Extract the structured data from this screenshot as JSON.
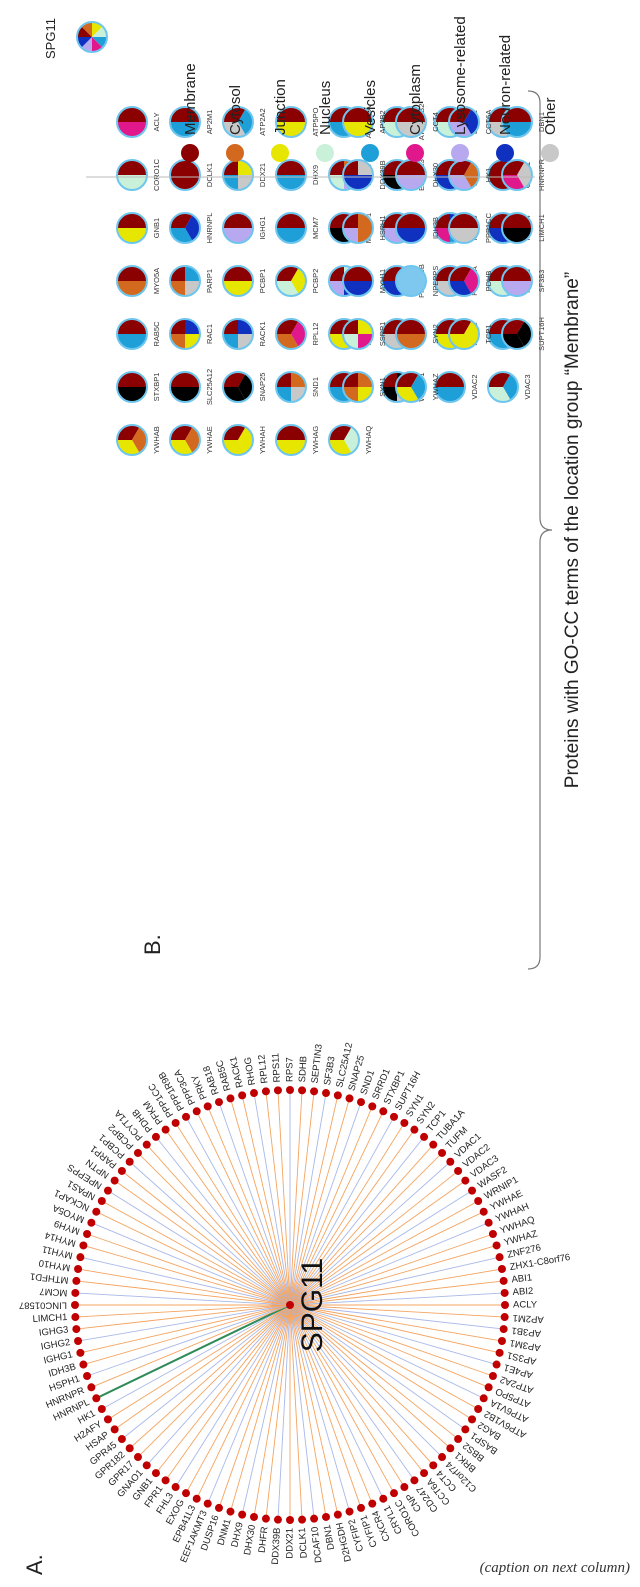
{
  "panels": {
    "a_label": "A.",
    "b_label": "B."
  },
  "network": {
    "center_label": "SPG11",
    "nodes": [
      "LINC01587",
      "MCM7",
      "MTHFD1",
      "MYH10",
      "MYH11",
      "MYH14",
      "MYH9",
      "MYO5A",
      "NCKAP1",
      "NPAS1",
      "NPEPPS",
      "NPTN",
      "PARP1",
      "PCBP1",
      "PCBP2",
      "PCYT1A",
      "PDHB",
      "PFKM",
      "PPP1CC",
      "PPP1R9B",
      "PPP3CA",
      "PRKY",
      "RAB18",
      "RAB5C",
      "RACK1",
      "RHOG",
      "RPL12",
      "RPS11",
      "RPS7",
      "SDHB",
      "SEPTIN3",
      "SF3B3",
      "SLC25A12",
      "SNAP25",
      "SND1",
      "SRRD1",
      "STXBP1",
      "SUPT16H",
      "SYN1",
      "SYN2",
      "TCP1",
      "TUBA1A",
      "TUFM",
      "VDAC1",
      "VDAC2",
      "VDAC3",
      "WASF2",
      "WRNIP1",
      "YWHAE",
      "YWHAH",
      "YWHAQ",
      "YWHAZ",
      "ZNF276",
      "ZHX1-C8orf76",
      "ABI1",
      "ABI2",
      "ACLY",
      "AP2M1",
      "AP3B1",
      "AP3M1",
      "AP3S1",
      "AP4E1",
      "ATP2A2",
      "ATP5PO",
      "ATP6V1A",
      "ATP6V1B2",
      "BAG2",
      "BASP1",
      "BBS2",
      "BRK1",
      "C12orf74",
      "CCT4",
      "CCT6A",
      "CD247",
      "CNP",
      "CORO1C",
      "CRYL1",
      "CXCR4",
      "CYFIP1",
      "CYFIP2",
      "D2HGDH",
      "DBN1",
      "DCAF10",
      "DCLK1",
      "DDX21",
      "DDX39B",
      "DHFR",
      "DHX30",
      "DHX9",
      "DNM1",
      "DUSP16",
      "EEF1AKMT3",
      "EPB41L3",
      "EXOG",
      "FHL3",
      "FPR1",
      "GNB1",
      "GNAO1",
      "GPR17",
      "GPR182",
      "GPR45",
      "HSAP",
      "H2AFY",
      "HK1",
      "HNRNPL",
      "HNRNPR",
      "HSPH1",
      "IDH3B",
      "IGHG1",
      "IGHG2",
      "IGHG3",
      "LIMCH1"
    ],
    "highlight_index": 104
  },
  "legend": {
    "items": [
      {
        "label": "Membrane",
        "color": "#8B0000"
      },
      {
        "label": "Cytosol",
        "color": "#D2691E"
      },
      {
        "label": "Junction",
        "color": "#E6E600"
      },
      {
        "label": "Nucleus",
        "color": "#C9F0D8"
      },
      {
        "label": "Vesicles",
        "color": "#1E9FD8"
      },
      {
        "label": "Cytoplasm",
        "color": "#E0188C"
      },
      {
        "label": "Lysosome-related",
        "color": "#B8A8F0"
      },
      {
        "label": "Neuron-related",
        "color": "#1030C0"
      },
      {
        "label": "Other",
        "color": "#C8C8C8"
      }
    ]
  },
  "pies": {
    "main_label": "SPG11",
    "membrane_group_label": "Proteins with GO-CC terms of the location group “Membrane”",
    "membrane": [
      [
        "ACLY",
        "AP2M1",
        "ATP2A2",
        "ATP5PO",
        "ATP6V1A",
        "ATP6V1B2",
        "BASP1",
        "CNP"
      ],
      [
        "CORO1C",
        "DCLK1",
        "DDX21",
        "DHX9",
        "DNM1",
        "EPB41L3",
        "EXOG",
        "GNAO1"
      ],
      [
        "GNB1",
        "HNRNPL",
        "IGHG1",
        "MCM7",
        "MTHFD1",
        "MYH9",
        "MYH10",
        "MYH14"
      ],
      [
        "MYO5A",
        "PARP1",
        "PCBP1",
        "PCBP2",
        "PFKM",
        "PPP1R9B",
        "PPP3CA",
        "RAB18"
      ],
      [
        "RAB5C",
        "RAC1",
        "RACK1",
        "RPL12",
        "RHOG",
        "RPS7",
        "RPS11",
        "SDHB"
      ],
      [
        "STXBP1",
        "SLC25A12",
        "SNAP25",
        "SND1",
        "TUFM",
        "WRNIP1",
        "VDAC2",
        "VDAC3"
      ],
      [
        "YWHAB",
        "YWHAE",
        "YWHAH",
        "YWHAG",
        "YWHAQ"
      ]
    ],
    "other": [
      [
        "AP3B2",
        "CCT4",
        "CCT6A",
        "DBN1"
      ],
      [
        "DDX39B",
        "DHX30",
        "HK1",
        "HNRNPR"
      ],
      [
        "HSPH1",
        "IDH3B",
        "PPP1CC",
        "LIMCH1"
      ],
      [
        "MYH11",
        "NPEPPS",
        "PDHB",
        "SF3B3"
      ],
      [
        "SSRP1",
        "SYN2",
        "TCP1",
        "SUPT16H"
      ],
      [
        "SYN1",
        "YWHAZ"
      ]
    ]
  },
  "caption": "(caption on next column)"
}
